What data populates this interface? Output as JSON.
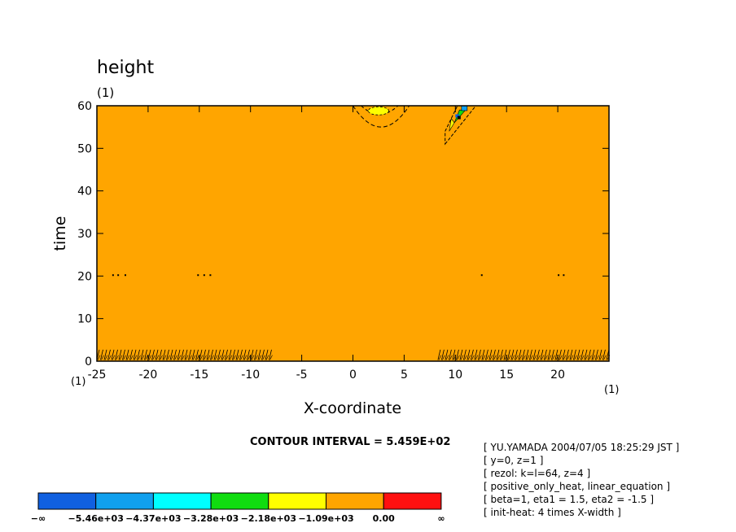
{
  "chart_data": {
    "type": "heatmap",
    "title": "height",
    "title_unit": "(1)",
    "xlabel": "X-coordinate",
    "ylabel": "time",
    "x_unit": "(1)",
    "x_unit_right": "(1)",
    "y_unit": "(1)",
    "xlim": [
      -25,
      25
    ],
    "ylim": [
      0,
      60
    ],
    "xticks": [
      -25,
      -20,
      -15,
      -10,
      -5,
      0,
      5,
      10,
      15,
      20
    ],
    "yticks": [
      0,
      10,
      20,
      30,
      40,
      50,
      60
    ],
    "contour_interval": "CONTOUR INTERVAL = 5.459E+02",
    "background_level": "-1.09e+03 to 0.00",
    "colorbar": {
      "labels": [
        "−∞",
        "−5.46e+03",
        "−4.37e+03",
        "−3.28e+03",
        "−2.18e+03",
        "−1.09e+03",
        "0.00",
        "∞"
      ],
      "colors": [
        "#1060e0",
        "#10a0ee",
        "#00ffff",
        "#10dd10",
        "#ffff00",
        "#ffa500",
        "#ff1010"
      ]
    },
    "features": [
      {
        "name": "yellow-patch",
        "x": [
          1.5,
          3.5
        ],
        "y": [
          57.5,
          60
        ],
        "color": "#ffff00"
      },
      {
        "name": "dashed-arc",
        "x": [
          0,
          5.5
        ],
        "y": [
          55,
          60
        ]
      },
      {
        "name": "blue-green-streak",
        "x": [
          9,
          11
        ],
        "y": [
          51,
          60
        ]
      }
    ],
    "info": [
      "[ YU.YAMADA 2004/07/05 18:25:29 JST ]",
      "[ y=0, z=1 ]",
      "[ rezol: k=l=64, z=4 ]",
      "[ positive_only_heat, linear_equation ]",
      "[ beta=1, eta1 = 1.5, eta2 = -1.5 ]",
      "[ init-heat: 4 times X-width ]"
    ]
  }
}
